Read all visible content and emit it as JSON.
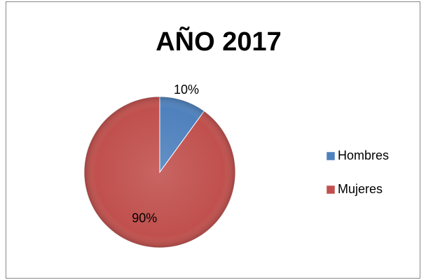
{
  "chart_data": {
    "type": "pie",
    "title": "AÑO 2017",
    "categories": [
      "Hombres",
      "Mujeres"
    ],
    "values": [
      10,
      90
    ],
    "value_labels": [
      "10%",
      "90%"
    ],
    "colors": [
      "#4f81bd",
      "#c0504d"
    ],
    "legend": "right"
  }
}
